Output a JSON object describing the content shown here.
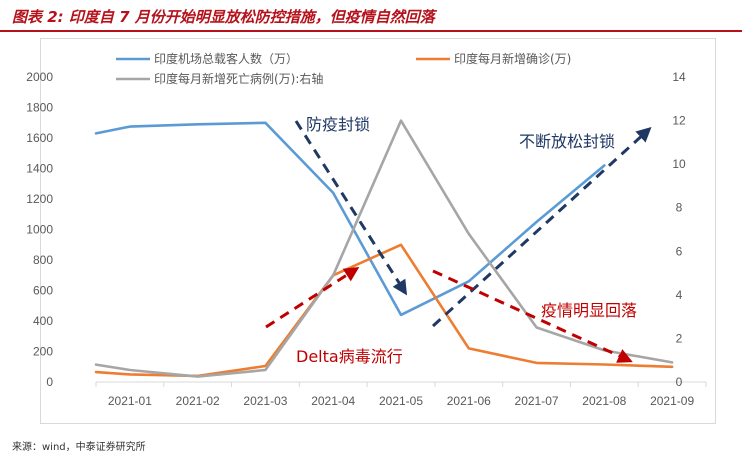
{
  "title": "图表 2: 印度自 7 月份开始明显放松防控措施，但疫情自然回落",
  "source": "来源：wind，中泰证券研究所",
  "chart_data": {
    "type": "line",
    "categories": [
      "2021-01",
      "2021-02",
      "2021-03",
      "2021-04",
      "2021-05",
      "2021-06",
      "2021-07",
      "2021-08",
      "2021-09"
    ],
    "y_left": {
      "ticks": [
        0,
        200,
        400,
        600,
        800,
        1000,
        1200,
        1400,
        1600,
        1800,
        2000
      ],
      "range": [
        0,
        2000
      ]
    },
    "y_right": {
      "ticks": [
        0,
        2,
        4,
        6,
        8,
        10,
        12,
        14
      ],
      "range": [
        0,
        14
      ]
    },
    "series": [
      {
        "name": "印度机场总载客人数（万）",
        "axis": "left",
        "color": "#5b9bd5",
        "points": [
          [
            0.0,
            1630
          ],
          [
            0.5,
            1675
          ],
          [
            1.5,
            1690
          ],
          [
            2.5,
            1700
          ],
          [
            3.5,
            1240
          ],
          [
            4.5,
            440
          ],
          [
            5.5,
            660
          ],
          [
            6.5,
            1050
          ],
          [
            7.5,
            1420
          ]
        ]
      },
      {
        "name": "印度每月新增确诊(万)",
        "axis": "left",
        "color": "#ed7d31",
        "points": [
          [
            0.0,
            65
          ],
          [
            0.5,
            50
          ],
          [
            1.5,
            40
          ],
          [
            2.5,
            105
          ],
          [
            3.5,
            700
          ],
          [
            4.5,
            900
          ],
          [
            5.5,
            220
          ],
          [
            6.5,
            125
          ],
          [
            7.5,
            115
          ],
          [
            8.5,
            100
          ]
        ]
      },
      {
        "name": "印度每月新增死亡病例(万):右轴",
        "axis": "right",
        "color": "#a6a6a6",
        "points": [
          [
            0.0,
            0.8
          ],
          [
            0.5,
            0.55
          ],
          [
            1.5,
            0.25
          ],
          [
            2.5,
            0.55
          ],
          [
            3.5,
            4.9
          ],
          [
            4.5,
            12.0
          ],
          [
            5.5,
            6.8
          ],
          [
            6.5,
            2.5
          ],
          [
            7.5,
            1.45
          ],
          [
            8.5,
            0.9
          ]
        ]
      }
    ],
    "annotations": [
      {
        "text": "防疫封锁",
        "color": "#1f3864"
      },
      {
        "text": "不断放松封锁",
        "color": "#1f3864"
      },
      {
        "text": "Delta病毒流行",
        "color": "#c00000"
      },
      {
        "text": "疫情明显回落",
        "color": "#c00000"
      }
    ]
  }
}
